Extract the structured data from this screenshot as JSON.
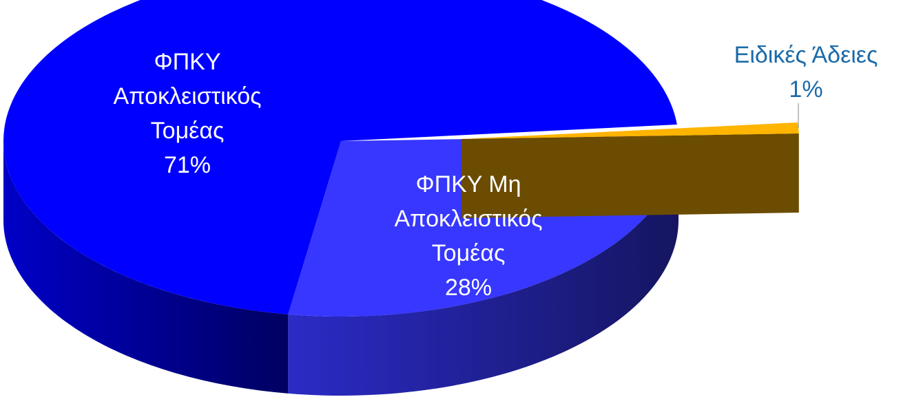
{
  "chart_data": {
    "type": "pie3d",
    "categories": [
      "ΦΠΚΥ\nΑποκλειστικός\nΤομέας",
      "Ειδικές Άδειες",
      "ΦΠΚΥ Μη\nΑποκλειστικός\nΤομέας"
    ],
    "values": [
      71,
      1,
      28
    ],
    "value_labels": [
      "71%",
      "1%",
      "28%"
    ],
    "colors": [
      "#0000ff",
      "#ffb400",
      "#3737ff"
    ],
    "label_colors": [
      "#ffffff",
      "#1c6aa8",
      "#ffffff"
    ]
  }
}
